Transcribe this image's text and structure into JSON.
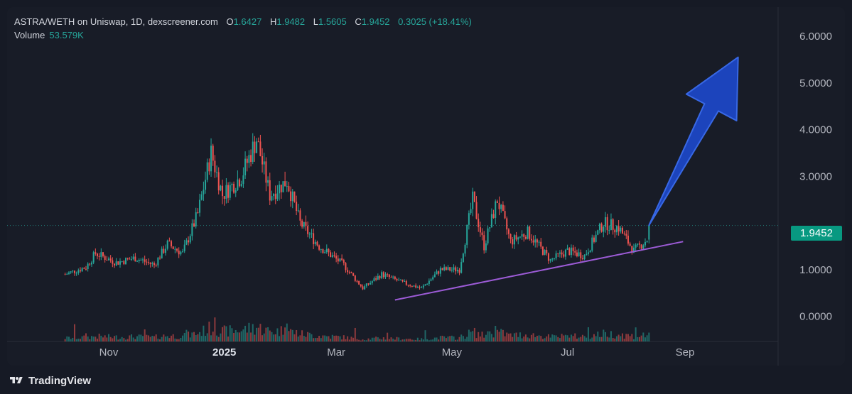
{
  "legend": {
    "symbol": "ASTRA/WETH on Uniswap, 1D, dexscreener.com",
    "o_label": "O",
    "o_value": "1.6427",
    "h_label": "H",
    "h_value": "1.9482",
    "l_label": "L",
    "l_value": "1.5605",
    "c_label": "C",
    "c_value": "1.9452",
    "change": "0.3025 (+18.41%)",
    "volume_label": "Volume",
    "volume_value": "53.579K"
  },
  "price_tag": "1.9452",
  "brand": {
    "name": "TradingView"
  },
  "colors": {
    "up": "#26a69a",
    "down": "#ef5350",
    "trendline": "#9c5bd6",
    "arrow": "#1d47c4",
    "price_tag": "#089981"
  },
  "chart_data": {
    "type": "candlestick",
    "y_tick_labels": [
      "6.0000",
      "5.0000",
      "4.0000",
      "3.0000",
      "1.0000",
      "0.0000"
    ],
    "y_tick_values": [
      6,
      5,
      4,
      3,
      1,
      0
    ],
    "x_tick_labels": [
      "Nov",
      "2025",
      "Mar",
      "May",
      "Jul",
      "Sep"
    ],
    "x_tick_dates": [
      "2024-11-01",
      "2025-01-01",
      "2025-03-01",
      "2025-05-01",
      "2025-07-01",
      "2025-09-01"
    ],
    "last_close": 1.9452,
    "close_path": [
      {
        "date": "2024-10-09",
        "close": 0.9
      },
      {
        "date": "2024-10-20",
        "close": 1.05
      },
      {
        "date": "2024-10-25",
        "close": 1.35
      },
      {
        "date": "2024-11-05",
        "close": 1.15
      },
      {
        "date": "2024-11-15",
        "close": 1.25
      },
      {
        "date": "2024-11-25",
        "close": 1.1
      },
      {
        "date": "2024-12-02",
        "close": 1.55
      },
      {
        "date": "2024-12-10",
        "close": 1.35
      },
      {
        "date": "2024-12-18",
        "close": 2.2
      },
      {
        "date": "2024-12-25",
        "close": 3.5
      },
      {
        "date": "2024-12-31",
        "close": 2.6
      },
      {
        "date": "2025-01-10",
        "close": 3.0
      },
      {
        "date": "2025-01-18",
        "close": 3.8
      },
      {
        "date": "2025-01-25",
        "close": 2.6
      },
      {
        "date": "2025-02-03",
        "close": 2.9
      },
      {
        "date": "2025-02-10",
        "close": 2.0
      },
      {
        "date": "2025-02-20",
        "close": 1.5
      },
      {
        "date": "2025-03-05",
        "close": 1.1
      },
      {
        "date": "2025-03-15",
        "close": 0.6
      },
      {
        "date": "2025-03-25",
        "close": 0.9
      },
      {
        "date": "2025-04-05",
        "close": 0.72
      },
      {
        "date": "2025-04-15",
        "close": 0.6
      },
      {
        "date": "2025-04-25",
        "close": 1.0
      },
      {
        "date": "2025-05-05",
        "close": 1.0
      },
      {
        "date": "2025-05-12",
        "close": 2.5
      },
      {
        "date": "2025-05-18",
        "close": 1.5
      },
      {
        "date": "2025-05-25",
        "close": 2.5
      },
      {
        "date": "2025-06-01",
        "close": 1.6
      },
      {
        "date": "2025-06-10",
        "close": 1.8
      },
      {
        "date": "2025-06-22",
        "close": 1.2
      },
      {
        "date": "2025-07-01",
        "close": 1.4
      },
      {
        "date": "2025-07-10",
        "close": 1.3
      },
      {
        "date": "2025-07-20",
        "close": 2.0
      },
      {
        "date": "2025-07-28",
        "close": 1.9
      },
      {
        "date": "2025-08-05",
        "close": 1.4
      },
      {
        "date": "2025-08-12",
        "close": 1.6427
      },
      {
        "date": "2025-08-13",
        "close": 1.9452
      }
    ],
    "trendline": [
      {
        "date": "2025-04-01",
        "value": 0.35
      },
      {
        "date": "2025-08-31",
        "value": 1.6
      }
    ],
    "arrow": [
      {
        "date": "2025-08-13",
        "value": 1.95
      },
      {
        "date": "2025-09-29",
        "value": 5.55
      }
    ]
  }
}
